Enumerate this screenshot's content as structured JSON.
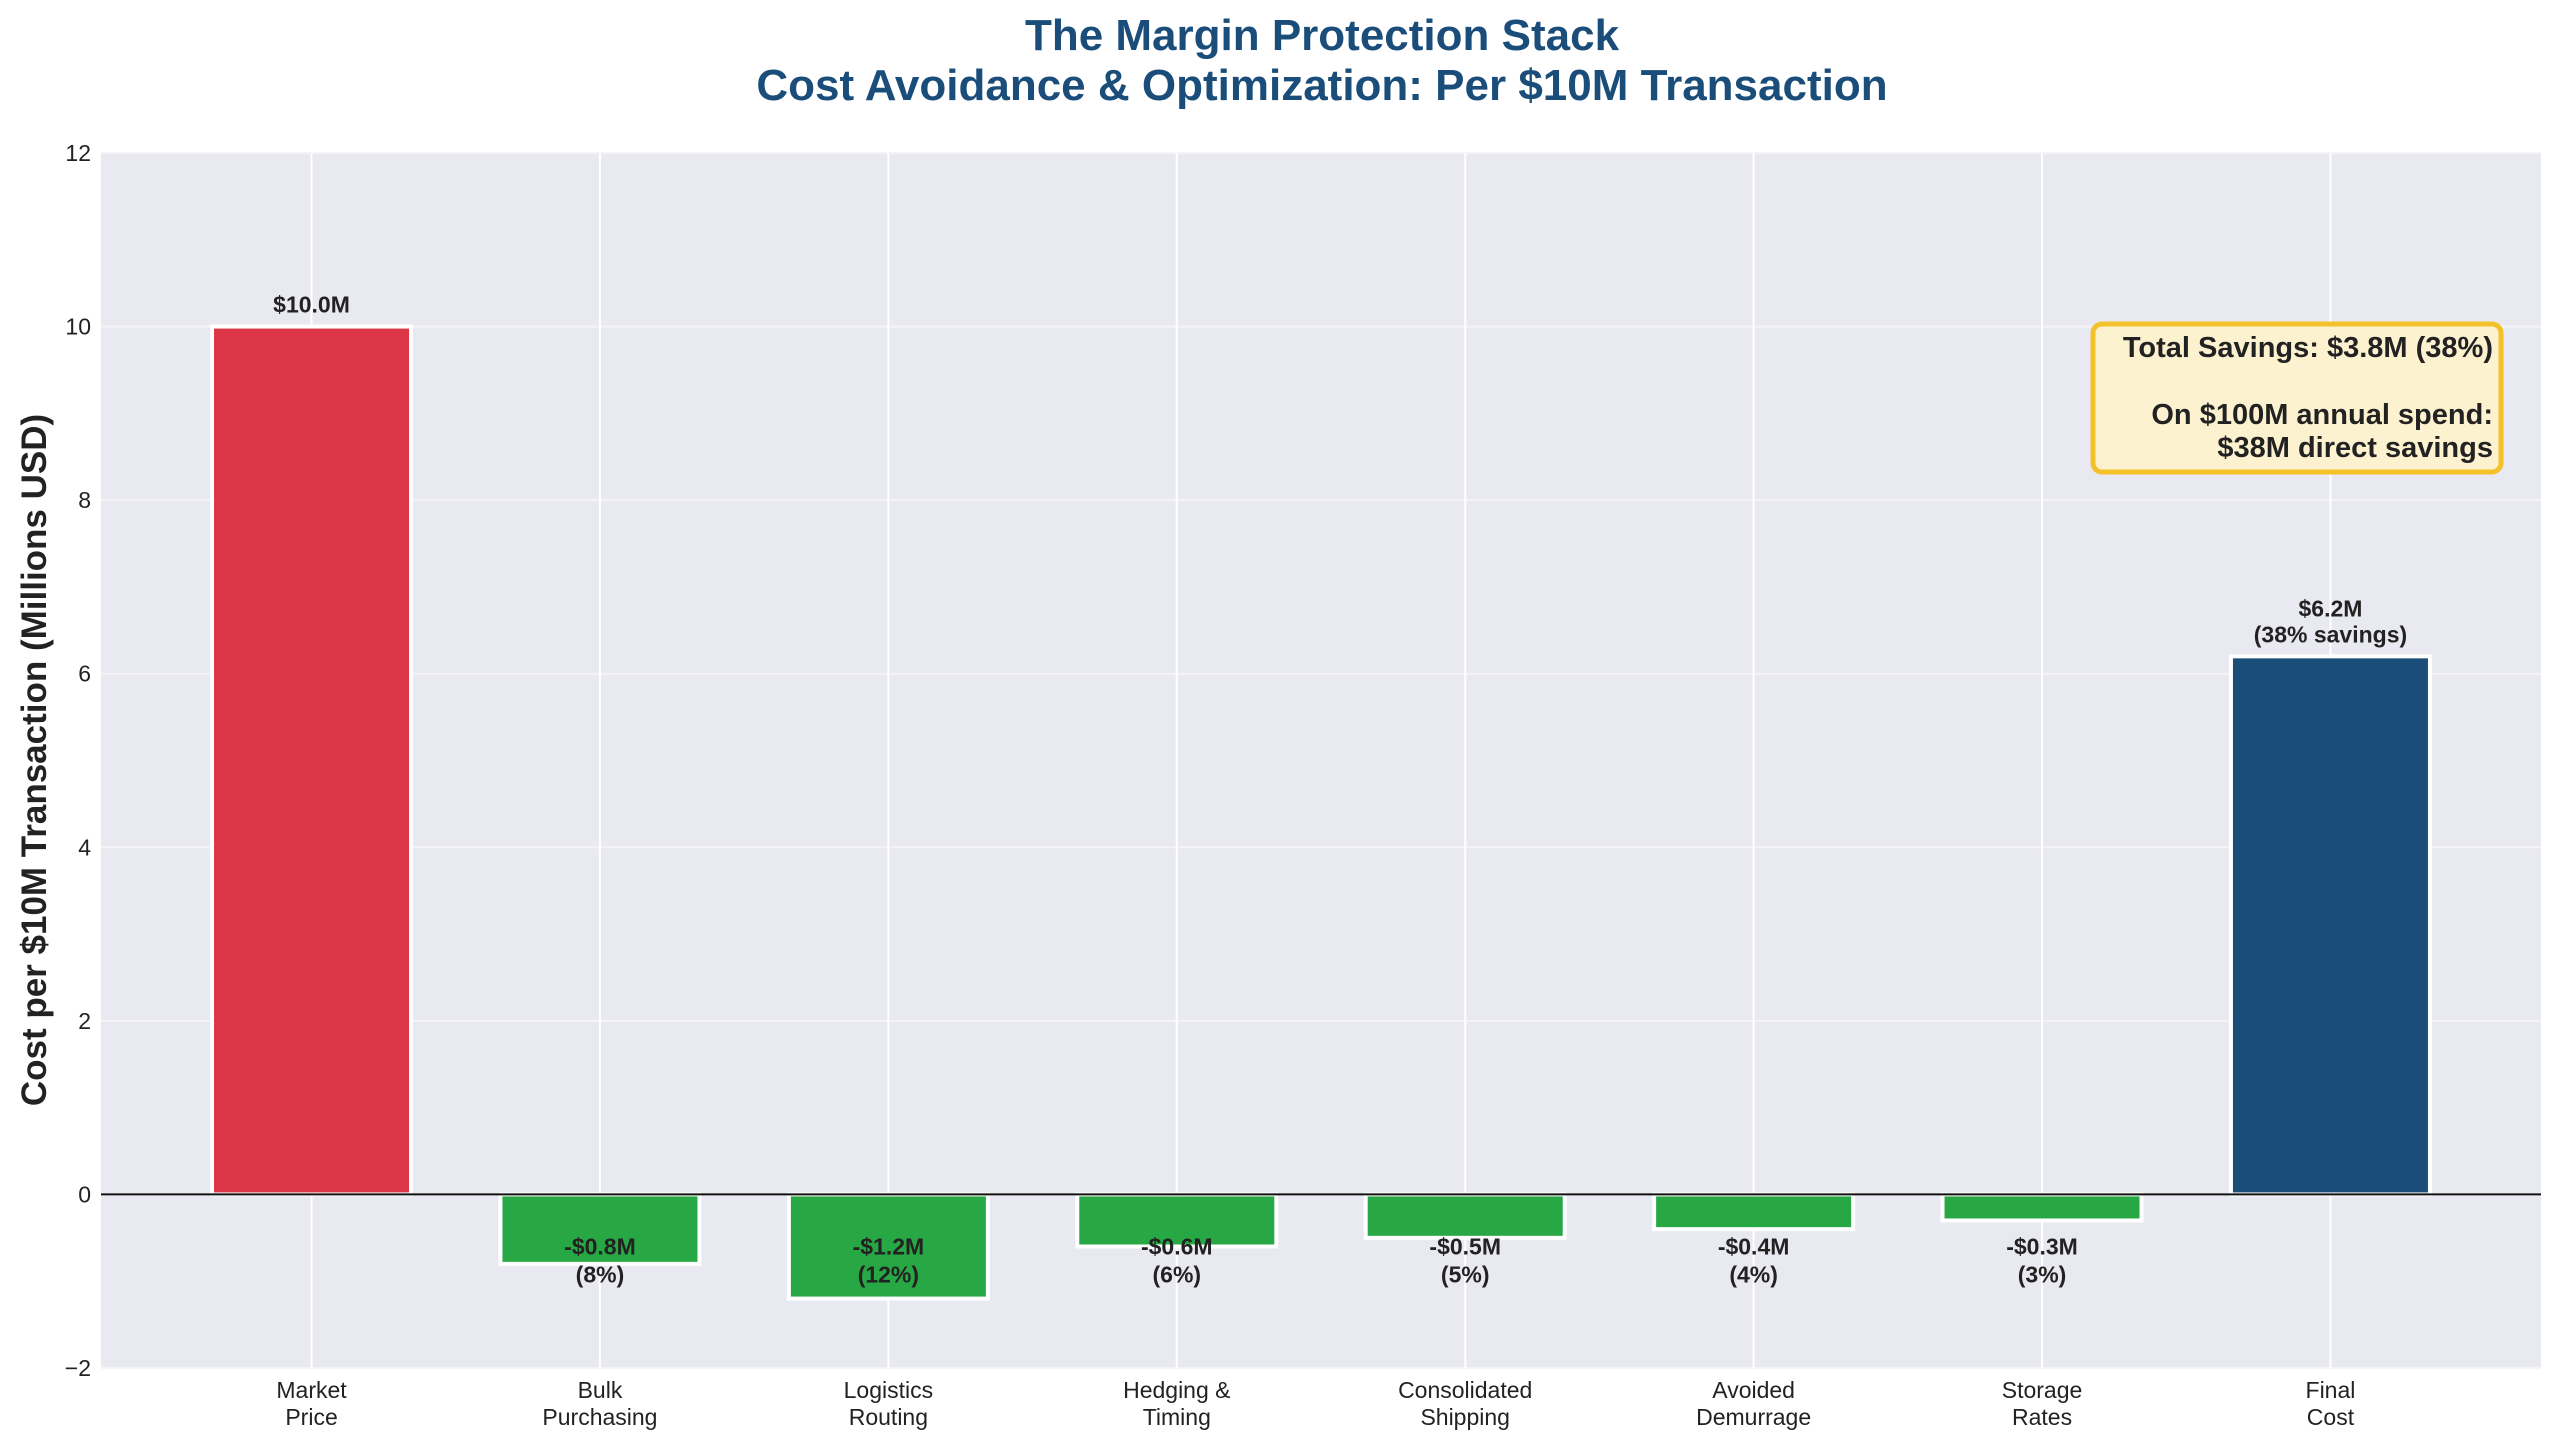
{
  "chart_data": {
    "type": "bar",
    "subtype": "waterfall-style",
    "title": "The Margin Protection Stack",
    "subtitle": "Cost Avoidance & Optimization: Per $10M Transaction",
    "xlabel": "",
    "ylabel": "Cost per $10M Transaction (Millions USD)",
    "ylim": [
      -2,
      12
    ],
    "yticks": [
      -2,
      0,
      2,
      4,
      6,
      8,
      10,
      12
    ],
    "grid": true,
    "categories": [
      [
        "Market",
        "Price"
      ],
      [
        "Bulk",
        "Purchasing"
      ],
      [
        "Logistics",
        "Routing"
      ],
      [
        "Hedging &",
        "Timing"
      ],
      [
        "Consolidated",
        "Shipping"
      ],
      [
        "Avoided",
        "Demurrage"
      ],
      [
        "Storage",
        "Rates"
      ],
      [
        "Final",
        "Cost"
      ]
    ],
    "values": [
      10.0,
      -0.8,
      -1.2,
      -0.6,
      -0.5,
      -0.4,
      -0.3,
      6.2
    ],
    "colors": [
      "#dc3545",
      "#28a745",
      "#28a745",
      "#28a745",
      "#28a745",
      "#28a745",
      "#28a745",
      "#1b4d7a"
    ],
    "data_labels": [
      [
        "$10.0M"
      ],
      [
        "-$0.8M",
        "(8%)"
      ],
      [
        "-$1.2M",
        "(12%)"
      ],
      [
        "-$0.6M",
        "(6%)"
      ],
      [
        "-$0.5M",
        "(5%)"
      ],
      [
        "-$0.4M",
        "(4%)"
      ],
      [
        "-$0.3M",
        "(3%)"
      ],
      [
        "$6.2M",
        "(38% savings)"
      ]
    ],
    "annotation": {
      "lines": [
        "Total Savings: $3.8M (38%)",
        "",
        "On $100M annual spend:",
        "$38M direct savings"
      ],
      "placement": "top-right",
      "background": "#fdf2d0",
      "border": "#f5c12b"
    },
    "background": "#e9e9f1"
  }
}
